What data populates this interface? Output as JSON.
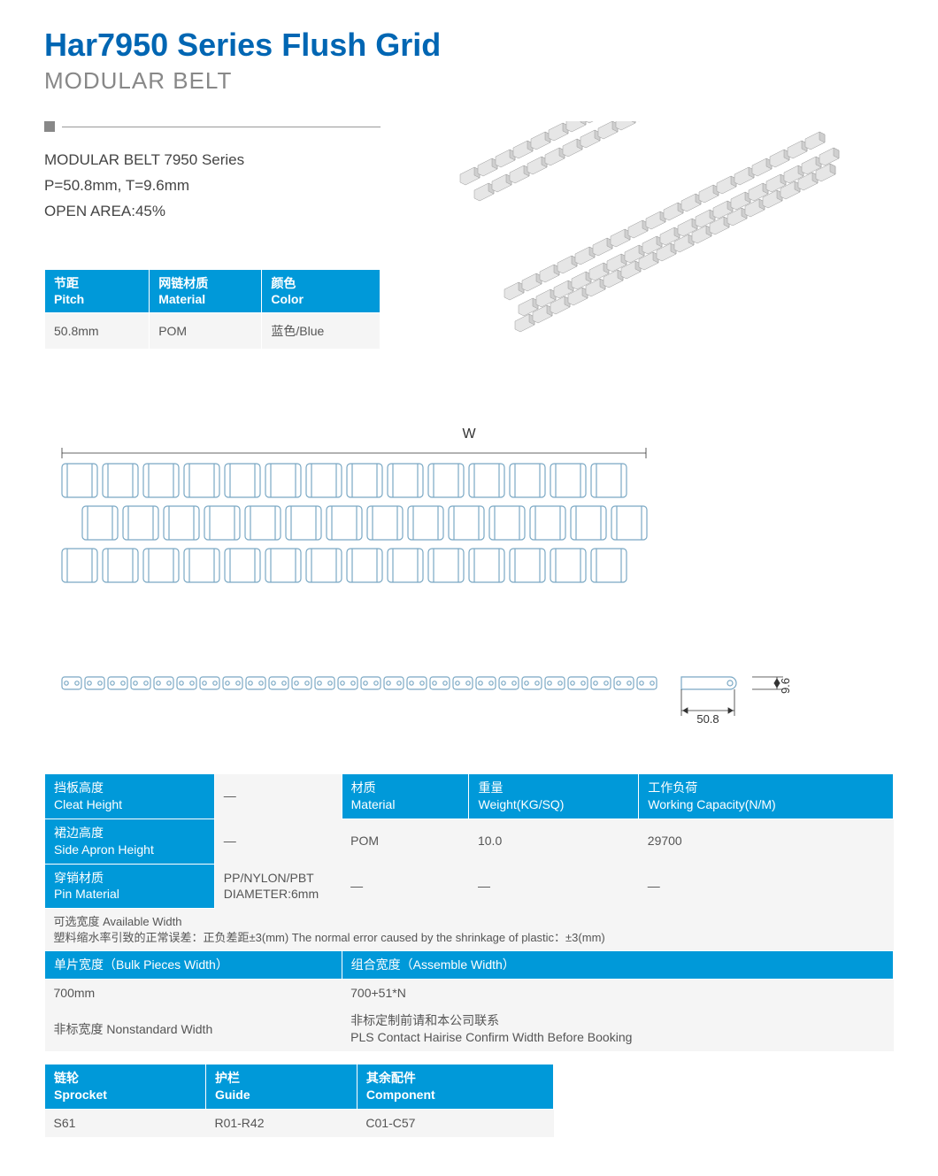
{
  "header": {
    "title": "Har7950 Series Flush Grid",
    "subtitle": "MODULAR BELT",
    "title_color": "#0066b3",
    "subtitle_color": "#888888"
  },
  "specs": {
    "line1": "MODULAR BELT 7950 Series",
    "line2": "P=50.8mm, T=9.6mm",
    "line3": "OPEN AREA:45%"
  },
  "table1": {
    "header_bg": "#0099d9",
    "data_bg": "#f5f5f5",
    "columns": [
      {
        "cn": "节距",
        "en": "Pitch"
      },
      {
        "cn": "网链材质",
        "en": "Material"
      },
      {
        "cn": "颜色",
        "en": "Color"
      }
    ],
    "row": [
      "50.8mm",
      "POM",
      "蓝色/Blue"
    ]
  },
  "drawing": {
    "w_label": "W",
    "dim_pitch": "50.8",
    "dim_thickness": "9.6",
    "stroke": "#6ba4c8",
    "module_count": 14,
    "row_count": 3
  },
  "table2": {
    "left_headers": [
      {
        "cn": "挡板高度",
        "en": "Cleat Height"
      },
      {
        "cn": "裙边高度",
        "en": "Side Apron Height"
      },
      {
        "cn": "穿销材质",
        "en": "Pin Material"
      }
    ],
    "left_values": [
      "—",
      "—",
      "PP/NYLON/PBT\nDIAMETER:6mm"
    ],
    "right_headers": [
      {
        "cn": "材质",
        "en": "Material"
      },
      {
        "cn": "重量",
        "en": "Weight(KG/SQ)"
      },
      {
        "cn": "工作负荷",
        "en": "Working Capacity(N/M)"
      }
    ],
    "right_rows": [
      [
        "POM",
        "10.0",
        "29700"
      ],
      [
        "—",
        "—",
        "—"
      ]
    ],
    "note_cn": "可选宽度 Available Width",
    "note_full": "塑料缩水率引致的正常误差：正负差距±3(mm)  The normal error caused by the shrinkage of plastic：±3(mm)",
    "width_headers": [
      "单片宽度（Bulk Pieces Width）",
      "组合宽度（Assemble Width）"
    ],
    "width_row1": [
      "700mm",
      "700+51*N"
    ],
    "width_row2_label": "非标宽度 Nonstandard Width",
    "width_row2_val_cn": "非标定制前请和本公司联系",
    "width_row2_val_en": "PLS Contact Hairise Confirm Width Before Booking"
  },
  "table3": {
    "columns": [
      {
        "cn": "链轮",
        "en": "Sprocket"
      },
      {
        "cn": "护栏",
        "en": "Guide"
      },
      {
        "cn": "其余配件",
        "en": "Component"
      }
    ],
    "row": [
      "S61",
      "R01-R42",
      "C01-C57"
    ]
  },
  "colors": {
    "blue_header": "#0099d9",
    "gray_cell": "#f5f5f5",
    "drawing_stroke": "#7aa8c4",
    "dim_text": "#333333"
  }
}
